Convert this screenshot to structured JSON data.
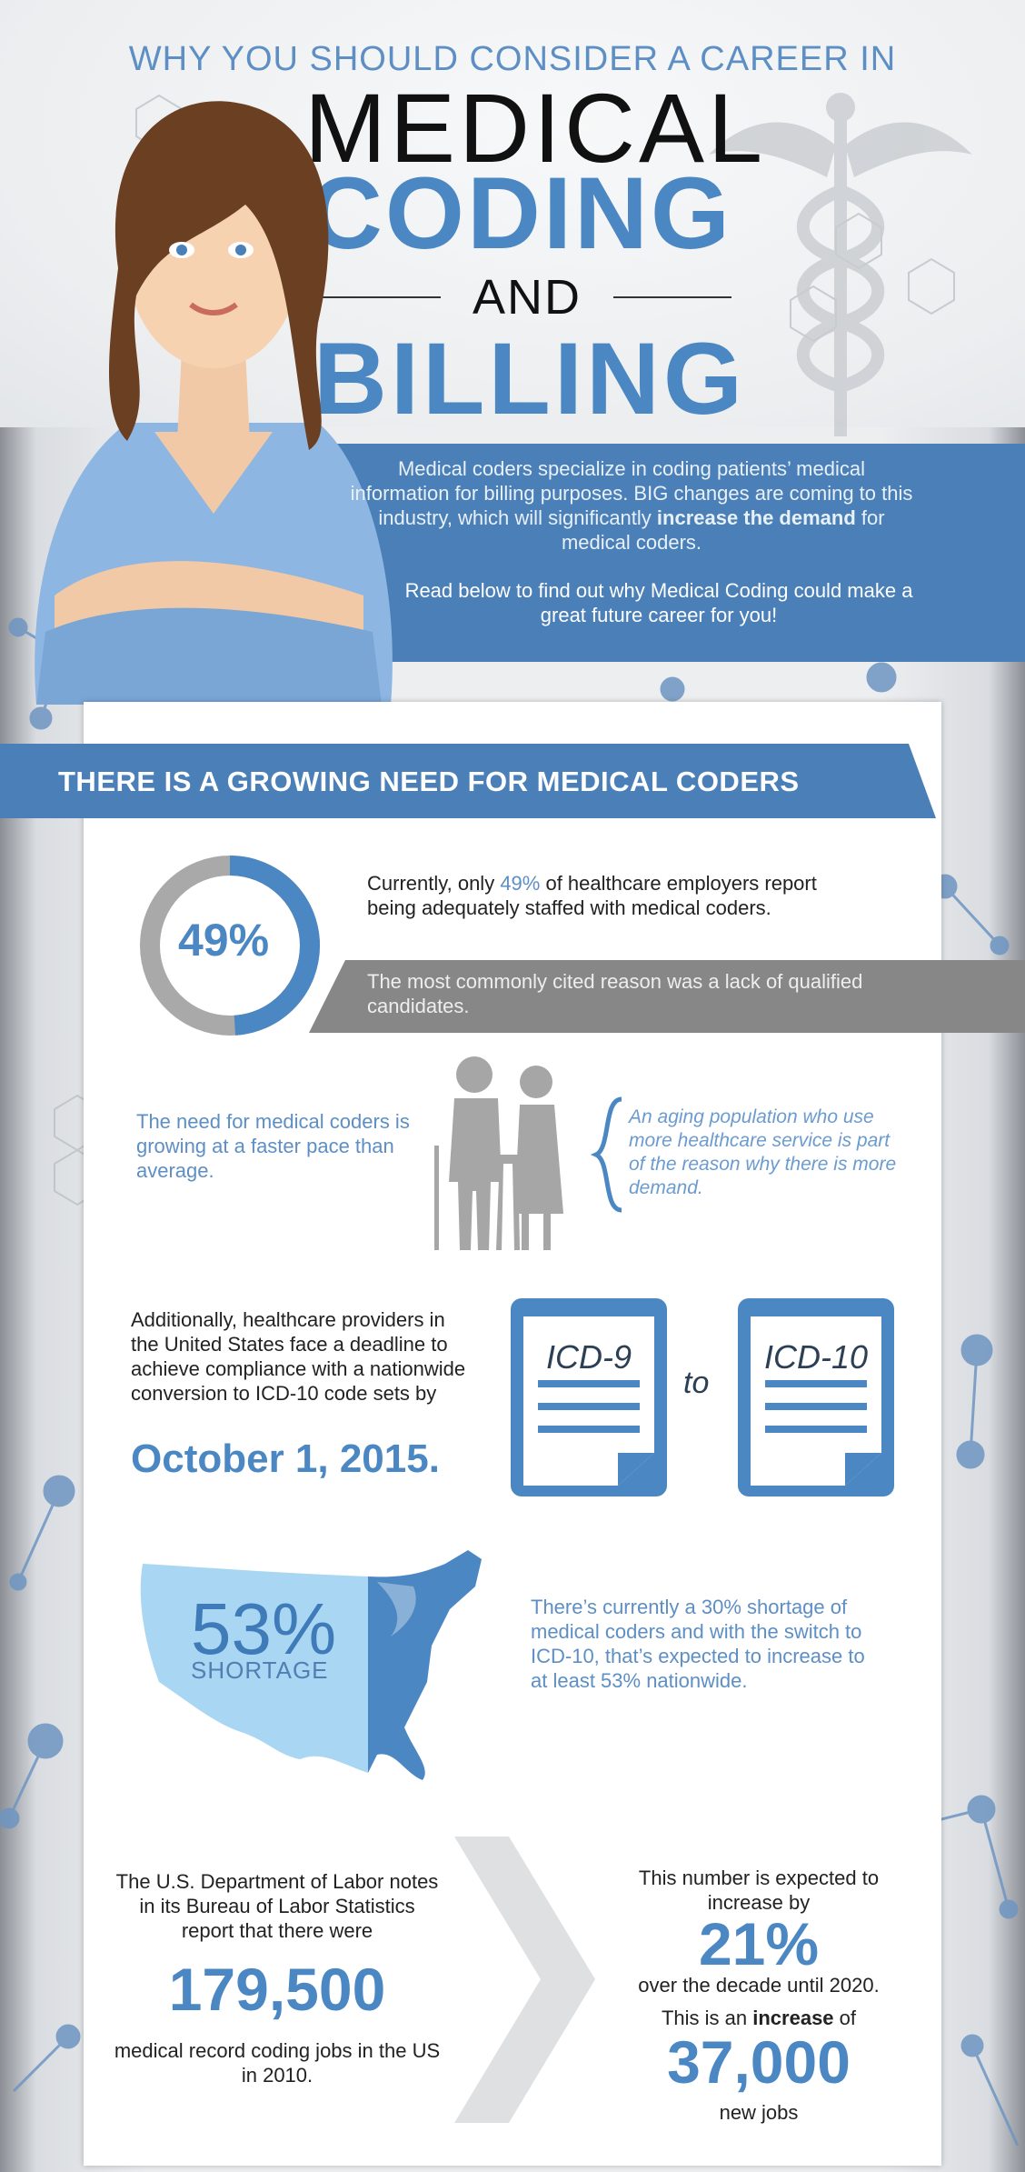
{
  "header": {
    "kicker": "WHY YOU SHOULD CONSIDER A CAREER IN",
    "word_medical": "MEDICAL",
    "word_coding": "CODING",
    "word_and": "AND",
    "word_billing": "BILLING"
  },
  "intro": {
    "p1_a": "Medical coders specialize in coding patients’ medical information for billing purposes. BIG changes are coming to this industry, which will significantly ",
    "p1_bold": "increase the demand",
    "p1_b": " for medical coders.",
    "p2": "Read below to find out why Medical Coding could make a great future career for you!"
  },
  "section": {
    "banner": "THERE IS A GROWING NEED FOR MEDICAL CODERS"
  },
  "stat49": {
    "percent": 49,
    "label": "49%",
    "text_a": "Currently, only ",
    "text_pct": "49%",
    "text_b": " of healthcare employers report being adequately staffed with medical coders.",
    "reason": "The most commonly cited reason was a lack of qualified candidates."
  },
  "aging": {
    "left_text": "The need for medical coders is growing at a faster pace than average.",
    "quote": "An aging population who use more healthcare service is part of the reason why there is more demand."
  },
  "icd": {
    "text": "Additionally, healthcare providers in the United States face a deadline to achieve compliance with a nationwide conversion to ICD-10 code sets by",
    "date": "October 1, 2015.",
    "from_label": "ICD-9",
    "to_word": "to",
    "to_label": "ICD-10"
  },
  "shortage": {
    "pct": "53%",
    "label": "SHORTAGE",
    "text": "There’s currently a 30% shortage of medical coders and with the switch to ICD-10, that’s expected to increase to at least 53% nationwide."
  },
  "jobs": {
    "left_text": "The U.S. Department of Labor notes in its Bureau of Labor Statistics report that there were",
    "left_num": "179,500",
    "left_tail": "medical record coding jobs in the US in 2010.",
    "right_text": "This number is expected to increase by",
    "right_pct": "21%",
    "right_decade": "over the decade until 2020.",
    "inc_a": "This is an ",
    "inc_bold": "increase",
    "inc_b": " of",
    "right_num": "37,000",
    "right_tail": "new jobs"
  },
  "colors": {
    "accent_blue": "#4b87c2",
    "light_blue": "#a9d6f2",
    "grey": "#878787"
  },
  "icons": [
    "caduceus-icon",
    "elderly-couple-icon",
    "clipboard-icon",
    "us-map-icon",
    "chevron-right-icon"
  ]
}
